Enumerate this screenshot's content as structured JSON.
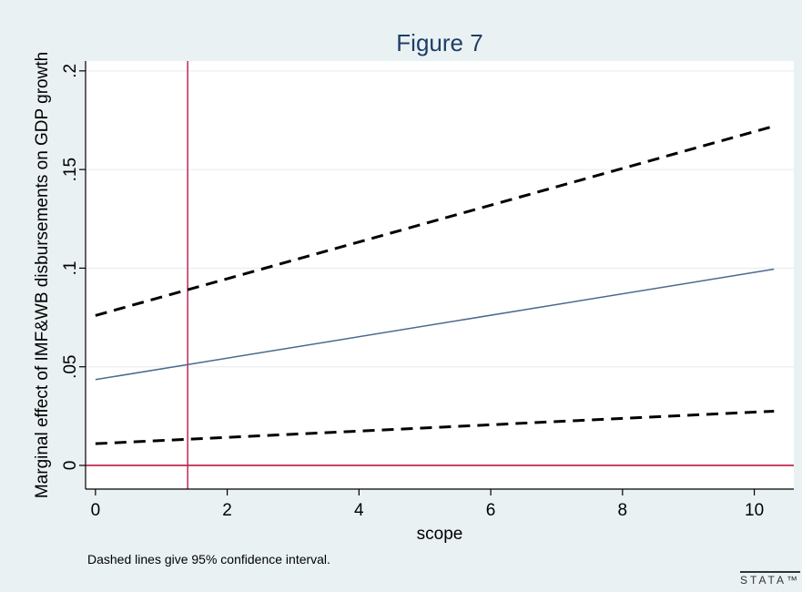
{
  "chart_data": {
    "type": "line",
    "title": "Figure 7",
    "xlabel": "scope",
    "ylabel": "Marginal effect of IMF&WB disbursements on GDP growth",
    "note": "Dashed lines give 95% confidence interval.",
    "xlim": [
      -0.15,
      10.6
    ],
    "ylim": [
      -0.012,
      0.205
    ],
    "xticks": [
      0,
      2,
      4,
      6,
      8,
      10
    ],
    "xtick_labels": [
      "0",
      "2",
      "4",
      "6",
      "8",
      "10"
    ],
    "yticks": [
      0,
      0.05,
      0.1,
      0.15,
      0.2
    ],
    "ytick_labels": [
      "0",
      ".05",
      ".1",
      ".15",
      ".2"
    ],
    "grid": true,
    "series": [
      {
        "role": "estimate",
        "style": "solid",
        "color": "#4a6a8c",
        "x": [
          0,
          10.3
        ],
        "y": [
          0.0435,
          0.0995
        ]
      },
      {
        "role": "upper-ci",
        "style": "dashed",
        "color": "#000000",
        "x": [
          0,
          10.3
        ],
        "y": [
          0.076,
          0.172
        ]
      },
      {
        "role": "lower-ci",
        "style": "dashed",
        "color": "#000000",
        "x": [
          0,
          10.3
        ],
        "y": [
          0.011,
          0.0275
        ]
      }
    ],
    "reference_lines": [
      {
        "axis": "y",
        "value": 0,
        "color": "#c0284f"
      },
      {
        "axis": "x",
        "value": 1.4,
        "color": "#c0284f"
      }
    ]
  },
  "branding": {
    "logo_text": "STATA™"
  }
}
